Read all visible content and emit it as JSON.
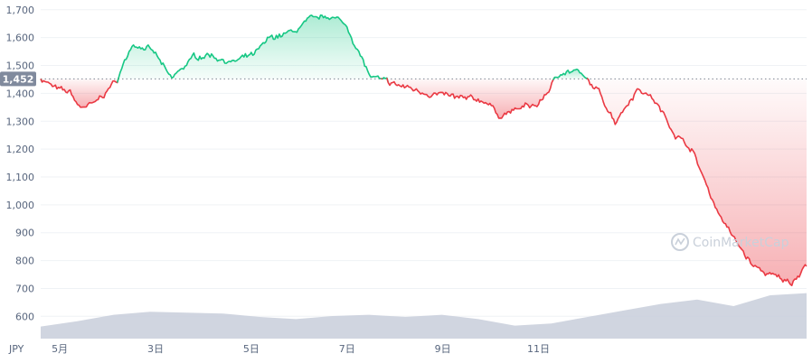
{
  "chart_data": {
    "type": "line",
    "currency_label": "JPY",
    "ylim": [
      520,
      1735
    ],
    "y_ticks": [
      600,
      700,
      800,
      900,
      1000,
      1100,
      1200,
      1300,
      1400,
      1500,
      1600,
      1700
    ],
    "y_tick_labels": [
      "600",
      "700",
      "800",
      "900",
      "1,000",
      "1,100",
      "1,200",
      "1,300",
      "1,400",
      "1,500",
      "1,600",
      "1,700"
    ],
    "x_range": [
      4.2,
      12.2
    ],
    "x_ticks": [
      4.4,
      6,
      8,
      10,
      12
    ],
    "x_tick_labels": [
      "5月",
      "3日",
      "5日",
      "7日",
      "9日",
      "11日"
    ],
    "x_tick_positions": [
      4.4,
      5.4,
      6.4,
      7.4,
      8.4,
      9.4
    ],
    "baseline": 1452,
    "baseline_label": "1,452",
    "colors": {
      "up": "#16c784",
      "down": "#ea3943",
      "volume": "#c8ceda",
      "baseline": "#7d8794"
    },
    "watermark": "CoinMarketCap",
    "grid": true,
    "series": [
      {
        "x": [
          0.0,
          0.02,
          0.04,
          0.05,
          0.07,
          0.09,
          0.1,
          0.12,
          0.14,
          0.15,
          0.17,
          0.2,
          0.22,
          0.25,
          0.28,
          0.3,
          0.33,
          0.35,
          0.38,
          0.4,
          0.43,
          0.45,
          0.48,
          0.5,
          0.53,
          0.55,
          0.58,
          0.6,
          0.63,
          0.65,
          0.68,
          0.7,
          0.73,
          0.75,
          0.78,
          0.8,
          0.83,
          0.85,
          0.88,
          0.9,
          0.93,
          0.95,
          0.98,
          1.0
        ],
        "y": [
          1455,
          1415,
          1400,
          1350,
          1360,
          1420,
          1450,
          1580,
          1560,
          1540,
          1450,
          1530,
          1540,
          1510,
          1540,
          1600,
          1620,
          1660,
          1680,
          1640,
          1460,
          1440,
          1420,
          1405,
          1390,
          1380,
          1375,
          1320,
          1350,
          1360,
          1480,
          1480,
          1400,
          1300,
          1420,
          1380,
          1250,
          1200,
          1000,
          900,
          780,
          750,
          720,
          790
        ]
      }
    ],
    "volume": [
      0.28,
      0.4,
      0.55,
      0.62,
      0.6,
      0.58,
      0.5,
      0.45,
      0.52,
      0.55,
      0.5,
      0.55,
      0.45,
      0.3,
      0.35,
      0.5,
      0.65,
      0.8,
      0.9,
      0.75,
      1.0,
      1.05
    ]
  }
}
